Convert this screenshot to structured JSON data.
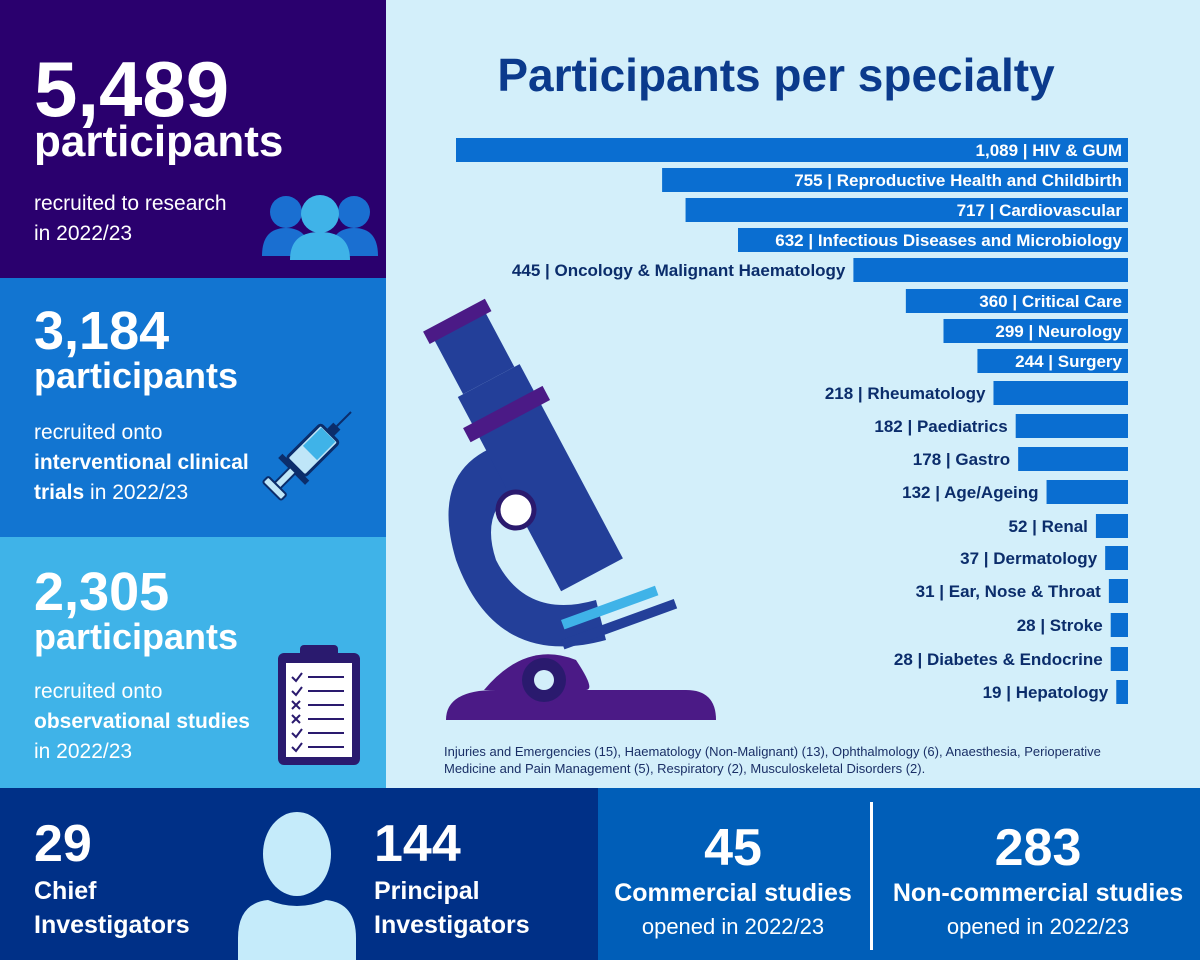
{
  "stats": {
    "total": {
      "value": "5,489",
      "unit": "participants",
      "text1": "recruited to research",
      "text2": "in 2022/23"
    },
    "interventional": {
      "value": "3,184",
      "unit": "participants",
      "text1": "recruited onto",
      "text2_bold": "interventional clinical",
      "text3_bold": "trials",
      "text3": " in 2022/23"
    },
    "observational": {
      "value": "2,305",
      "unit": "participants",
      "text1": "recruited onto",
      "text2_bold": "observational studies",
      "text3": "in 2022/23"
    }
  },
  "investigators": {
    "chief": {
      "value": "29",
      "label1": "Chief",
      "label2": "Investigators"
    },
    "principal": {
      "value": "144",
      "label1": "Principal",
      "label2": "Investigators"
    }
  },
  "studies": {
    "commercial": {
      "value": "45",
      "label": "Commercial studies",
      "sub": "opened in 2022/23"
    },
    "noncommercial": {
      "value": "283",
      "label": "Non-commercial studies",
      "sub": "opened in 2022/23"
    }
  },
  "chart_data": {
    "type": "bar",
    "title": "Participants per specialty",
    "orientation": "horizontal",
    "categories": [
      "HIV & GUM",
      "Reproductive Health and Childbirth",
      "Cardiovascular",
      "Infectious Diseases and Microbiology",
      "Oncology & Malignant Haematology",
      "Critical Care",
      "Neurology",
      "Surgery",
      "Rheumatology",
      "Paediatrics",
      "Gastro",
      "Age/Ageing",
      "Renal",
      "Dermatology",
      "Ear, Nose & Throat",
      "Stroke",
      "Diabetes & Endocrine",
      "Hepatology"
    ],
    "values": [
      1089,
      755,
      717,
      632,
      445,
      360,
      299,
      244,
      218,
      182,
      178,
      132,
      52,
      37,
      31,
      28,
      28,
      19
    ],
    "value_labels": [
      "1,089",
      "755",
      "717",
      "632",
      "445",
      "360",
      "299",
      "244",
      "218",
      "182",
      "178",
      "132",
      "52",
      "37",
      "31",
      "28",
      "28",
      "19"
    ],
    "colors": {
      "bar": "#0a6ed1",
      "title": "#0b3a8c",
      "label_inside": "#ffffff",
      "label_outside": "#0b2d6b"
    },
    "footnote": "Injuries and Emergencies (15), Haematology (Non-Malignant) (13), Ophthalmology (6), Anaesthesia, Perioperative Medicine and Pain Management (5), Respiratory (2), Musculoskeletal Disorders (2)."
  },
  "icons": [
    "people-icon",
    "syringe-icon",
    "clipboard-icon",
    "microscope-icon",
    "person-icon"
  ]
}
